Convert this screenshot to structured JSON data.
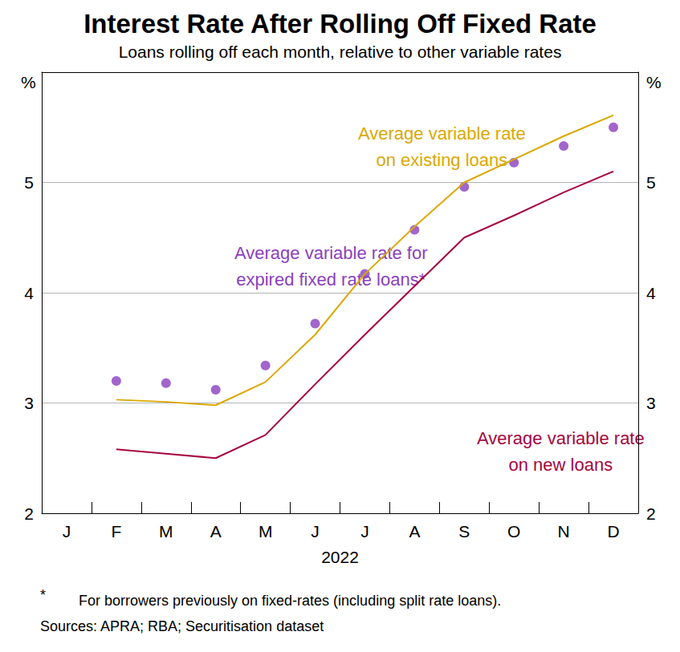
{
  "chart_data": {
    "type": "line",
    "title": "Interest Rate After Rolling Off Fixed Rate",
    "subtitle": "Loans rolling off each month, relative to other variable rates",
    "x_label": "2022",
    "y_unit": "%",
    "categories": [
      "J",
      "F",
      "M",
      "A",
      "M",
      "J",
      "J",
      "A",
      "S",
      "O",
      "N",
      "D"
    ],
    "series": [
      {
        "name": "Average variable rate on existing loans",
        "label_lines": [
          "Average variable rate",
          "on existing loans"
        ],
        "type": "line",
        "marker": "none",
        "line_style": "solid",
        "color": "#dba800",
        "values": [
          null,
          3.03,
          3.01,
          2.98,
          3.19,
          3.62,
          4.17,
          4.6,
          5.0,
          5.21,
          5.42,
          5.61
        ]
      },
      {
        "name": "Average variable rate on new loans",
        "label_lines": [
          "Average variable rate",
          "on new loans"
        ],
        "type": "line",
        "marker": "none",
        "line_style": "solid",
        "color": "#a6063f",
        "values": [
          null,
          2.58,
          2.54,
          2.5,
          2.71,
          3.17,
          3.62,
          4.06,
          4.5,
          4.7,
          4.91,
          5.1
        ]
      },
      {
        "name": "Average variable rate for expired fixed rate loans*",
        "label_lines": [
          "Average variable rate for",
          "expired fixed rate loans*"
        ],
        "type": "scatter",
        "marker": "circle",
        "color": "#8a3fbf",
        "values": [
          null,
          3.2,
          3.18,
          3.12,
          3.34,
          3.72,
          4.17,
          4.57,
          4.96,
          5.18,
          5.33,
          5.5
        ]
      }
    ],
    "ylim": [
      2,
      6
    ],
    "yticks": [
      2,
      3,
      4,
      5
    ],
    "grid": true,
    "footnote": {
      "marker": "*",
      "text": "For borrowers previously on fixed-rates (including split rate loans)."
    },
    "sources": "Sources: APRA; RBA; Securitisation dataset"
  }
}
